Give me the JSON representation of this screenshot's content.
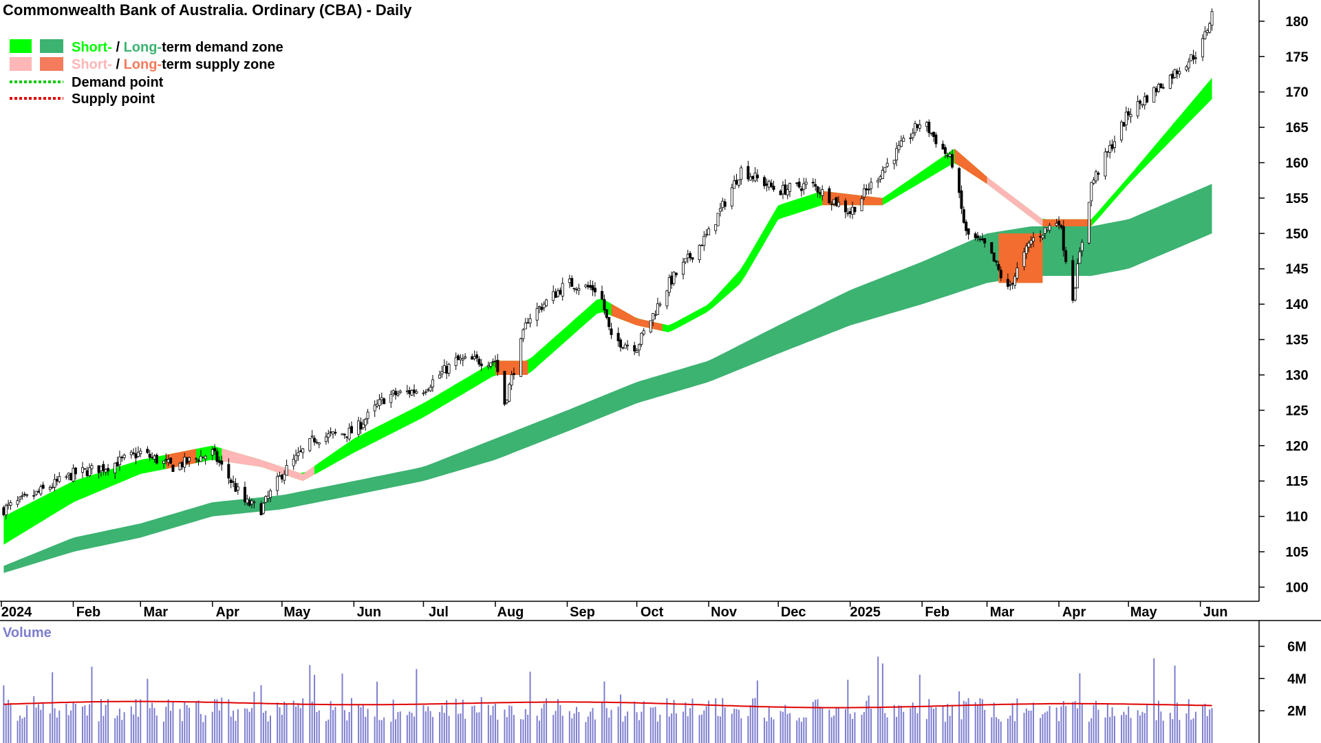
{
  "title": "Commonwealth Bank of Australia. Ordinary (CBA) - Daily",
  "colors": {
    "short_demand": "#00ff00",
    "long_demand": "#3cb371",
    "short_supply": "#ffb6b6",
    "long_supply": "#f47b5c",
    "supply_zone_active": "#f26d2f",
    "demand_point": "#00c800",
    "supply_point": "#e00000",
    "volume_bar": "#7d7dcf",
    "volume_avg": "#e00000",
    "volume_title": "#7d7dcf"
  },
  "legend": {
    "zones_demand": {
      "short": "Short-",
      "sep": " / ",
      "long": "Long-",
      "rest": "term demand zone"
    },
    "zones_supply": {
      "short": "Short-",
      "sep": " / ",
      "long": "Long-",
      "rest": "term supply zone"
    },
    "demand_point": "Demand point",
    "supply_point": "Supply point"
  },
  "volume_panel": {
    "title": "Volume",
    "tick_labels": [
      "6M",
      "4M",
      "2M"
    ]
  },
  "chart_data": {
    "type": "candlestick",
    "x_tick_labels": [
      "2024",
      "Feb",
      "Mar",
      "Apr",
      "May",
      "Jun",
      "Jul",
      "Aug",
      "Sep",
      "Oct",
      "Nov",
      "Dec",
      "2025",
      "Feb",
      "Mar",
      "Apr",
      "May",
      "Jun"
    ],
    "y_tick_labels": [
      "180",
      "175",
      "170",
      "165",
      "160",
      "155",
      "150",
      "145",
      "140",
      "135",
      "130",
      "125",
      "120",
      "115",
      "110",
      "105",
      "100"
    ],
    "ylim": [
      98,
      183
    ],
    "close_series": {
      "dates": [
        "2024-01-02",
        "2024-01-15",
        "2024-02-01",
        "2024-02-15",
        "2024-03-01",
        "2024-03-15",
        "2024-04-01",
        "2024-04-15",
        "2024-04-22",
        "2024-05-01",
        "2024-05-15",
        "2024-06-01",
        "2024-06-15",
        "2024-07-01",
        "2024-07-15",
        "2024-08-01",
        "2024-08-05",
        "2024-08-15",
        "2024-09-01",
        "2024-09-15",
        "2024-09-20",
        "2024-10-01",
        "2024-10-15",
        "2024-11-01",
        "2024-11-15",
        "2024-12-01",
        "2024-12-15",
        "2025-01-01",
        "2025-01-15",
        "2025-02-01",
        "2025-02-14",
        "2025-02-20",
        "2025-03-01",
        "2025-03-10",
        "2025-03-20",
        "2025-04-01",
        "2025-04-07",
        "2025-04-15",
        "2025-05-01",
        "2025-05-15",
        "2025-06-01",
        "2025-06-06"
      ],
      "close": [
        111,
        113,
        116,
        117,
        119,
        117,
        119,
        112,
        111,
        116,
        121,
        122,
        127,
        128,
        132,
        132,
        126,
        138,
        143,
        142,
        135,
        134,
        143,
        150,
        159,
        156,
        157,
        153,
        159,
        166,
        160,
        150,
        148,
        142,
        149,
        152,
        141,
        157,
        167,
        171,
        176,
        181
      ]
    },
    "short_term_zone": {
      "dates": [
        "2024-01-02",
        "2024-02-01",
        "2024-03-01",
        "2024-04-01",
        "2024-04-22",
        "2024-05-10",
        "2024-06-01",
        "2024-07-01",
        "2024-08-01",
        "2024-08-15",
        "2024-09-15",
        "2024-10-01",
        "2024-10-15",
        "2024-11-01",
        "2024-11-15",
        "2024-12-01",
        "2024-12-20",
        "2025-01-15",
        "2025-02-15",
        "2025-03-01",
        "2025-03-25",
        "2025-04-15",
        "2025-05-01",
        "2025-06-06"
      ],
      "upper": [
        110,
        115,
        118,
        120,
        118,
        116,
        121,
        126,
        132,
        132,
        141,
        138,
        137,
        140,
        145,
        154,
        156,
        155,
        162,
        158,
        152,
        152,
        158,
        172
      ],
      "lower": [
        106,
        112,
        116,
        118,
        117,
        115,
        119,
        124,
        130,
        130,
        139,
        137,
        136,
        139,
        143,
        152,
        154,
        154,
        160,
        157,
        151,
        151,
        157,
        169
      ]
    },
    "long_term_zone": {
      "dates": [
        "2024-01-02",
        "2024-02-01",
        "2024-03-01",
        "2024-04-01",
        "2024-05-01",
        "2024-06-01",
        "2024-07-01",
        "2024-08-01",
        "2024-09-01",
        "2024-10-01",
        "2024-11-01",
        "2024-12-01",
        "2025-01-01",
        "2025-02-01",
        "2025-03-01",
        "2025-03-20",
        "2025-04-15",
        "2025-05-01",
        "2025-06-06"
      ],
      "upper": [
        103,
        107,
        109,
        112,
        113,
        115,
        117,
        121,
        125,
        129,
        132,
        137,
        142,
        146,
        150,
        151,
        151,
        152,
        157
      ],
      "lower": [
        102,
        105,
        107,
        110,
        111,
        113,
        115,
        118,
        122,
        126,
        129,
        133,
        137,
        140,
        143,
        144,
        144,
        145,
        150
      ]
    },
    "volume_axis_ticks": [
      6,
      4,
      2
    ],
    "volume_unit": "M",
    "volume_average": 2.4
  }
}
